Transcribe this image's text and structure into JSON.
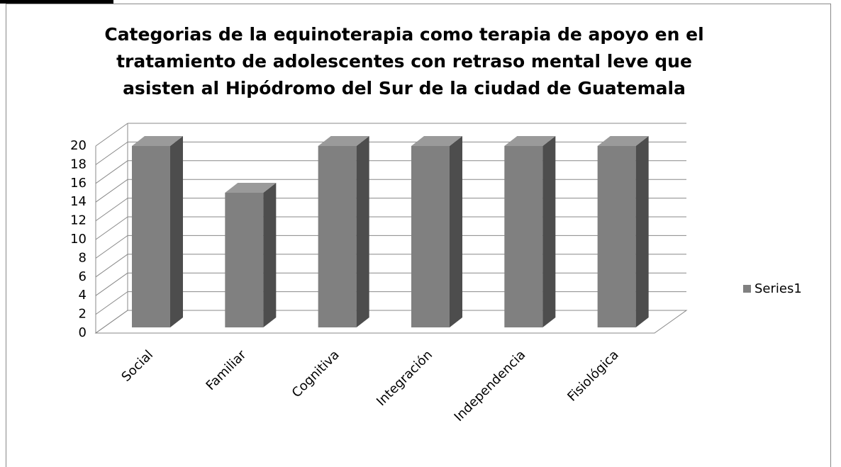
{
  "chart_data": {
    "type": "bar3d",
    "title": "Categorias de la equinoterapia como terapia de apoyo en el tratamiento de adolescentes con retraso mental leve que asisten al Hipódromo del Sur de la ciudad de Guatemala",
    "categories": [
      "Social",
      "Familiar",
      "Cognitiva",
      "Integración",
      "Independencia",
      "Fisiológica"
    ],
    "series": [
      {
        "name": "Series1",
        "color": "#808080",
        "values": [
          20,
          15,
          20,
          20,
          20,
          20
        ]
      }
    ],
    "ylim": [
      0,
      20
    ],
    "yticks": [
      0,
      2,
      4,
      6,
      8,
      10,
      12,
      14,
      16,
      18,
      20
    ],
    "grid": true,
    "legend": "right"
  }
}
